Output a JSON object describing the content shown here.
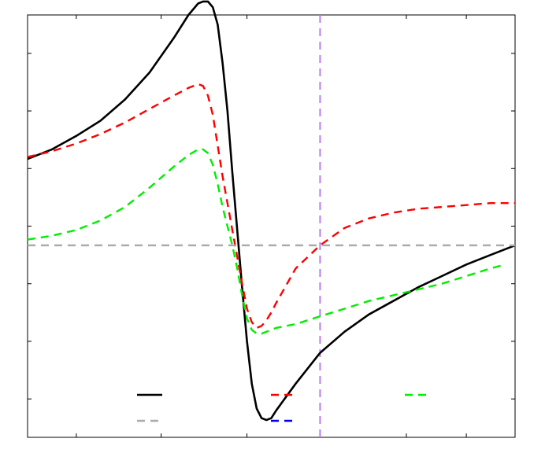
{
  "chart_data": {
    "type": "line",
    "title": "",
    "xlabel": "",
    "ylabel": "",
    "xlim": [
      0,
      1
    ],
    "ylim": [
      -1.0,
      1.2
    ],
    "grid": false,
    "legend": {
      "placement": "bottom-center",
      "columns": 3,
      "labels_printed": false
    },
    "xticks": [
      0.1,
      0.274,
      0.45,
      0.777,
      0.9
    ],
    "yticks": [
      -0.8,
      -0.5,
      -0.2,
      0.1,
      0.4,
      0.7,
      1.0
    ],
    "reference_lines": [
      {
        "orientation": "horizontal",
        "value": 0.0,
        "color": "#aaaaaa",
        "style": "dashed"
      },
      {
        "orientation": "vertical",
        "value": 0.6,
        "color": "#b57ef2",
        "style": "dashed"
      }
    ],
    "series": [
      {
        "color": "#000000",
        "style": "solid",
        "x": [
          0.0,
          0.05,
          0.1,
          0.15,
          0.2,
          0.25,
          0.3,
          0.33,
          0.35,
          0.36,
          0.37,
          0.38,
          0.39,
          0.4,
          0.41,
          0.42,
          0.43,
          0.44,
          0.45,
          0.46,
          0.47,
          0.48,
          0.49,
          0.5,
          0.51,
          0.53,
          0.55,
          0.6,
          0.65,
          0.7,
          0.75,
          0.8,
          0.85,
          0.9,
          0.95,
          1.0
        ],
        "y": [
          0.45,
          0.5,
          0.57,
          0.65,
          0.76,
          0.9,
          1.08,
          1.2,
          1.26,
          1.27,
          1.27,
          1.24,
          1.15,
          0.95,
          0.7,
          0.38,
          0.08,
          -0.22,
          -0.5,
          -0.72,
          -0.85,
          -0.9,
          -0.91,
          -0.9,
          -0.86,
          -0.79,
          -0.72,
          -0.56,
          -0.45,
          -0.36,
          -0.29,
          -0.22,
          -0.16,
          -0.1,
          -0.05,
          0.0
        ]
      },
      {
        "color": "#ff0000",
        "style": "dashed",
        "x": [
          0.0,
          0.05,
          0.1,
          0.15,
          0.2,
          0.25,
          0.3,
          0.33,
          0.35,
          0.36,
          0.37,
          0.38,
          0.39,
          0.4,
          0.41,
          0.42,
          0.43,
          0.44,
          0.45,
          0.46,
          0.47,
          0.48,
          0.49,
          0.5,
          0.51,
          0.53,
          0.55,
          0.6,
          0.65,
          0.7,
          0.75,
          0.8,
          0.85,
          0.9,
          0.95,
          1.0
        ],
        "y": [
          0.46,
          0.49,
          0.53,
          0.58,
          0.64,
          0.71,
          0.78,
          0.82,
          0.84,
          0.83,
          0.78,
          0.68,
          0.52,
          0.36,
          0.22,
          0.08,
          -0.06,
          -0.2,
          -0.33,
          -0.4,
          -0.43,
          -0.42,
          -0.39,
          -0.35,
          -0.3,
          -0.21,
          -0.12,
          0.0,
          0.09,
          0.14,
          0.17,
          0.19,
          0.2,
          0.21,
          0.22,
          0.22
        ]
      },
      {
        "color": "#00ee00",
        "style": "dashed",
        "x": [
          0.0,
          0.05,
          0.1,
          0.15,
          0.2,
          0.25,
          0.3,
          0.33,
          0.35,
          0.36,
          0.37,
          0.38,
          0.39,
          0.4,
          0.41,
          0.42,
          0.43,
          0.44,
          0.45,
          0.46,
          0.47,
          0.48,
          0.49,
          0.5,
          0.51,
          0.53,
          0.55,
          0.6,
          0.65,
          0.7,
          0.75,
          0.8,
          0.85,
          0.9,
          0.95,
          0.98
        ],
        "y": [
          0.03,
          0.05,
          0.08,
          0.13,
          0.2,
          0.3,
          0.41,
          0.47,
          0.5,
          0.5,
          0.48,
          0.42,
          0.32,
          0.2,
          0.1,
          0.0,
          -0.12,
          -0.26,
          -0.38,
          -0.44,
          -0.46,
          -0.46,
          -0.45,
          -0.44,
          -0.43,
          -0.42,
          -0.41,
          -0.37,
          -0.33,
          -0.29,
          -0.26,
          -0.23,
          -0.2,
          -0.16,
          -0.12,
          -0.1
        ]
      },
      {
        "color": "#aaaaaa",
        "style": "dashed",
        "x": [
          0.0,
          1.0
        ],
        "y": [
          0.0,
          0.0
        ]
      },
      {
        "color": "#0000ee",
        "style": "dashed",
        "x": [],
        "y": []
      }
    ]
  }
}
